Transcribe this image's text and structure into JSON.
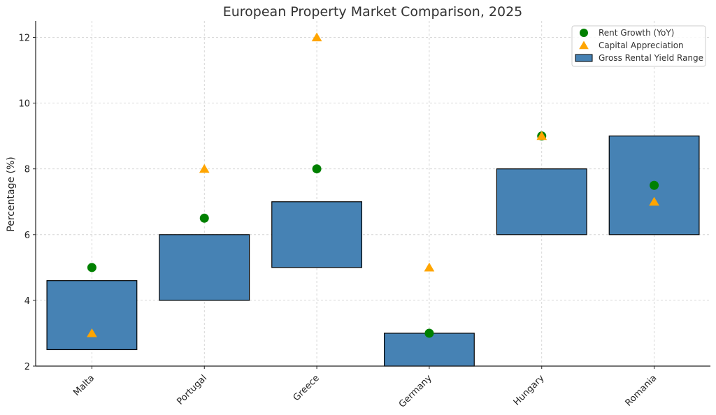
{
  "chart_data": {
    "type": "bar",
    "title": "European Property Market Comparison, 2025",
    "xlabel": "",
    "ylabel": "Percentage (%)",
    "categories": [
      "Malta",
      "Portugal",
      "Greece",
      "Germany",
      "Hungary",
      "Romania"
    ],
    "ylim": [
      2,
      12.5
    ],
    "yticks": [
      2,
      4,
      6,
      8,
      10,
      12
    ],
    "grid": true,
    "legend_position": "top-right",
    "series": [
      {
        "name": "Gross Rental Yield Range",
        "kind": "range-bar",
        "color": "#4682B4",
        "low": [
          2.5,
          4.0,
          5.0,
          2.0,
          6.0,
          6.0
        ],
        "high": [
          4.6,
          6.0,
          7.0,
          3.0,
          8.0,
          9.0
        ]
      },
      {
        "name": "Rent Growth (YoY)",
        "kind": "scatter",
        "marker": "circle",
        "color": "#008000",
        "values": [
          5.0,
          6.5,
          8.0,
          3.0,
          9.0,
          7.5
        ]
      },
      {
        "name": "Capital Appreciation",
        "kind": "scatter",
        "marker": "triangle",
        "color": "#FFA500",
        "values": [
          3.0,
          8.0,
          12.0,
          5.0,
          9.0,
          7.0
        ]
      }
    ]
  }
}
